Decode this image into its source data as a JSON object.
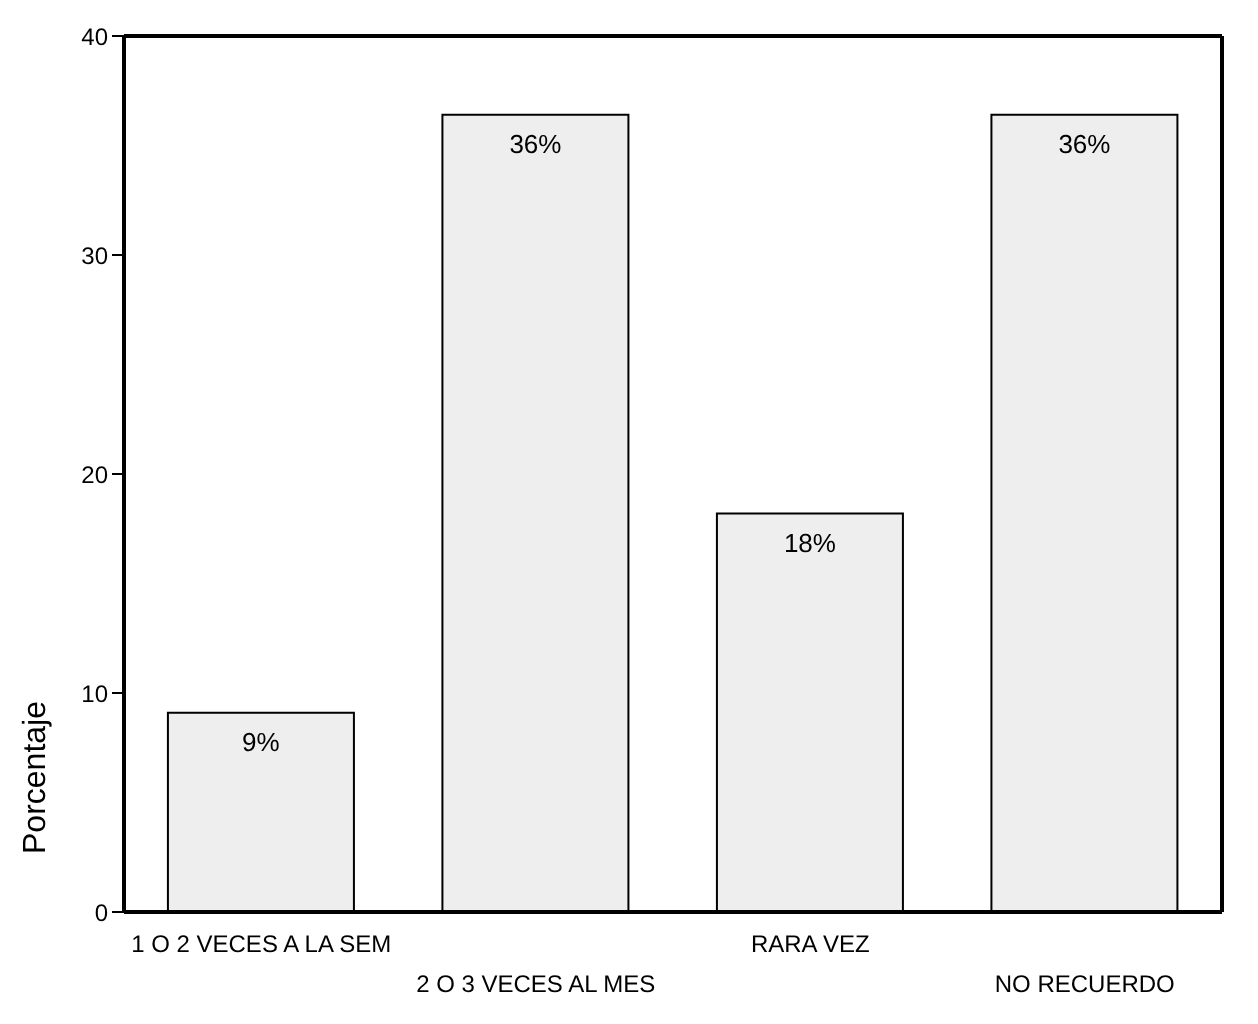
{
  "chart_data": {
    "type": "bar",
    "ylabel": "Porcentaje",
    "categories": [
      "1 O 2 VECES A LA SEM",
      "2 O 3 VECES AL MES",
      "RARA VEZ",
      "NO RECUERDO"
    ],
    "values": [
      9.1,
      36.4,
      18.2,
      36.4
    ],
    "value_labels": [
      "9%",
      "36%",
      "18%",
      "36%"
    ],
    "color": "#eeeeee",
    "ylim": [
      0,
      40
    ],
    "yticks": [
      0,
      10,
      20,
      30,
      40
    ],
    "grid": false,
    "legend": false
  }
}
